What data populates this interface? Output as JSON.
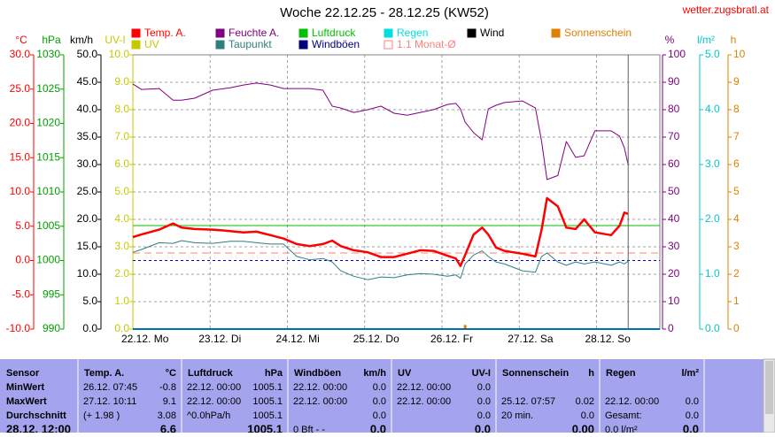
{
  "chart_data": {
    "type": "line",
    "title": "Woche 22.12.25 - 28.12.25 (KW52)",
    "source": "wetter.zugsbratl.at",
    "xlim": [
      0,
      6.82
    ],
    "xticks": [
      {
        "value": 0,
        "label": "22.12.  Mo"
      },
      {
        "value": 1,
        "label": "23.12.  Di"
      },
      {
        "value": 2,
        "label": "24.12.  Mi"
      },
      {
        "value": 3,
        "label": "25.12.  Do"
      },
      {
        "value": 4,
        "label": "26.12.  Fr"
      },
      {
        "value": 5,
        "label": "27.12.  Sa"
      },
      {
        "value": 6,
        "label": "28.12.  So"
      }
    ],
    "axes": [
      {
        "label": "°C",
        "color": "#ff0000",
        "side": "left",
        "lim": [
          -10,
          30
        ],
        "ticks": [
          {
            "value": 30,
            "label": "30.0"
          },
          {
            "value": 25,
            "label": "25.0"
          },
          {
            "value": 20,
            "label": "20.0"
          },
          {
            "value": 15,
            "label": "15.0"
          },
          {
            "value": 10,
            "label": "10.0"
          },
          {
            "value": 5,
            "label": "5.0"
          },
          {
            "value": 0,
            "label": "0.0"
          },
          {
            "value": -5,
            "label": "-5.0"
          },
          {
            "value": -10,
            "label": "-10.0"
          }
        ]
      },
      {
        "label": "hPa",
        "color": "#00a000",
        "side": "left",
        "lim": [
          990,
          1030
        ],
        "ticks": [
          1030,
          1025,
          1020,
          1015,
          1010,
          1005,
          1000,
          995,
          990
        ]
      },
      {
        "label": "km/h",
        "color": "#000000",
        "side": "left",
        "lim": [
          0,
          50
        ],
        "ticks": [
          {
            "value": 50,
            "label": "50.0"
          },
          {
            "value": 45,
            "label": "45.0"
          },
          {
            "value": 40,
            "label": "40.0"
          },
          {
            "value": 35,
            "label": "35.0"
          },
          {
            "value": 30,
            "label": "30.0"
          },
          {
            "value": 25,
            "label": "25.0"
          },
          {
            "value": 20,
            "label": "20.0"
          },
          {
            "value": 15,
            "label": "15.0"
          },
          {
            "value": 10,
            "label": "10.0"
          },
          {
            "value": 5,
            "label": "5.0"
          },
          {
            "value": 0,
            "label": "0.0"
          }
        ]
      },
      {
        "label": "UV-I",
        "color": "#c8c800",
        "side": "left",
        "lim": [
          0,
          10
        ],
        "ticks": [
          {
            "value": 10,
            "label": "10.0"
          },
          {
            "value": 9,
            "label": "9.0"
          },
          {
            "value": 8,
            "label": "8.0"
          },
          {
            "value": 7,
            "label": "7.0"
          },
          {
            "value": 6,
            "label": "6.0"
          },
          {
            "value": 5,
            "label": "5.0"
          },
          {
            "value": 4,
            "label": "4.0"
          },
          {
            "value": 3,
            "label": "3.0"
          },
          {
            "value": 2,
            "label": "2.0"
          },
          {
            "value": 1,
            "label": "1.0"
          },
          {
            "value": 0,
            "label": "0.0"
          }
        ]
      },
      {
        "label": "%",
        "color": "#800080",
        "side": "right",
        "grid": true,
        "lim": [
          0,
          100
        ],
        "ticks": [
          100,
          90,
          80,
          70,
          60,
          50,
          40,
          30,
          20,
          10,
          0
        ]
      },
      {
        "label": "l/m²",
        "color": "#00c8c8",
        "side": "right",
        "lim": [
          0,
          5
        ],
        "ticks": [
          {
            "value": 5,
            "label": "5.0"
          },
          {
            "value": 4,
            "label": "4.0"
          },
          {
            "value": 3,
            "label": "3.0"
          },
          {
            "value": 2,
            "label": "2.0"
          },
          {
            "value": 1,
            "label": "1.0"
          },
          {
            "value": 0,
            "label": "0.0"
          }
        ]
      },
      {
        "label": "h",
        "color": "#e08000",
        "side": "right",
        "lim": [
          0,
          10
        ],
        "ticks": [
          10,
          9,
          8,
          7,
          6,
          5,
          4,
          3,
          2,
          1,
          0
        ]
      }
    ],
    "x": [
      0,
      0.11,
      0.34,
      0.52,
      0.63,
      0.8,
      1.03,
      1.26,
      1.43,
      1.6,
      1.78,
      1.95,
      2.12,
      2.29,
      2.46,
      2.58,
      2.69,
      2.86,
      3.04,
      3.21,
      3.38,
      3.55,
      3.72,
      3.89,
      4.07,
      4.18,
      4.24,
      4.3,
      4.41,
      4.52,
      4.6,
      4.7,
      4.81,
      5.04,
      5.21,
      5.29,
      5.36,
      5.5,
      5.61,
      5.73,
      5.84,
      5.98,
      6.19,
      6.3,
      6.36,
      6.41
    ],
    "series": [
      {
        "name": "Temp. A.",
        "color": "#ff0000",
        "axis": 0,
        "width": 2.5,
        "values": [
          3.4,
          3.8,
          4.5,
          5.4,
          4.8,
          4.6,
          4.5,
          4.3,
          4.1,
          4.2,
          3.7,
          3.2,
          2.4,
          2.1,
          2.4,
          2.9,
          2.1,
          1.5,
          1.2,
          0.5,
          0.5,
          1.0,
          1.5,
          1.4,
          0.7,
          0.3,
          -0.8,
          0.8,
          3.8,
          4.8,
          3.8,
          1.9,
          1.4,
          1.0,
          0.6,
          4.5,
          9.1,
          7.9,
          4.8,
          4.6,
          6.0,
          4.1,
          3.7,
          5.1,
          7.0,
          6.8
        ]
      },
      {
        "name": "Feuchte A.",
        "color": "#800080",
        "axis": 4,
        "width": 1,
        "values": [
          89.4,
          87.4,
          87.7,
          83.5,
          83.5,
          84.2,
          87.1,
          88,
          89,
          89.7,
          89,
          87.7,
          87.7,
          87.7,
          87.1,
          81.3,
          80.6,
          79,
          80,
          81.3,
          78.7,
          78,
          79,
          80,
          81.9,
          82.3,
          80.3,
          75.5,
          71.6,
          69,
          80.3,
          81.6,
          82.6,
          83.2,
          80.6,
          68.4,
          54.5,
          56,
          68.4,
          62.6,
          63.2,
          72.3,
          72.3,
          70.3,
          66.1,
          60
        ]
      },
      {
        "name": "Luftdruck",
        "color": "#00c000",
        "axis": 1,
        "width": 1,
        "x": [
          0,
          6.82
        ],
        "values": [
          1005.1,
          1005.1
        ]
      },
      {
        "name": "Regen",
        "color": "#00e0e0",
        "axis": 5,
        "width": 2,
        "x": [
          0,
          6.82
        ],
        "values": [
          0,
          0
        ]
      },
      {
        "name": "Wind",
        "color": "#000000",
        "axis": 2,
        "width": 1,
        "x": [
          0,
          6.82
        ],
        "values": [
          0,
          0
        ]
      },
      {
        "name": "Sonnenschein",
        "color": "#e08000",
        "axis": 6,
        "style": "bar",
        "x": [
          4.3
        ],
        "values": [
          0.15
        ]
      },
      {
        "name": "UV",
        "color": "#c8c800",
        "axis": 3,
        "width": 1,
        "x": [
          0,
          6.82
        ],
        "values": [
          0,
          0
        ]
      },
      {
        "name": "Taupunkt",
        "color": "#2f7f7f",
        "axis": 0,
        "width": 1,
        "values": [
          1.2,
          1.6,
          2.6,
          2.5,
          2.9,
          2.6,
          2.5,
          2.8,
          2.8,
          2.6,
          2.4,
          2.4,
          0.6,
          0.1,
          0.3,
          -0.2,
          -1.5,
          -2.3,
          -2.8,
          -2.4,
          -2.5,
          -2.1,
          -1.9,
          -2.0,
          -2.3,
          -2.1,
          -2.6,
          -0.5,
          0.8,
          1.4,
          0.6,
          -0.2,
          -0.5,
          -1.5,
          -1.7,
          0.6,
          1.1,
          -0.2,
          -0.7,
          -0.2,
          -0.5,
          -0.2,
          -0.7,
          -0.2,
          -0.5,
          -0.1
        ]
      },
      {
        "name": "Windböen",
        "color": "#000080",
        "axis": 2,
        "width": 1,
        "x": [
          0,
          6.82
        ],
        "values": [
          0,
          0
        ]
      },
      {
        "name": "1.1 Monat-Ø",
        "color": "#ff8080",
        "axis": 0,
        "width": 1,
        "dash": true,
        "x": [
          0,
          6.82
        ],
        "values": [
          1.1,
          1.1
        ]
      }
    ]
  },
  "table": {
    "columns": [
      {
        "name": "Sensor"
      },
      {
        "name": "Temp. A.",
        "unit": "°C"
      },
      {
        "name": "Luftdruck",
        "unit": "hPa"
      },
      {
        "name": "Windböen",
        "unit": "km/h"
      },
      {
        "name": "UV",
        "unit": "UV-I"
      },
      {
        "name": "Sonnenschein",
        "unit": "h"
      },
      {
        "name": "Regen",
        "unit": "l/m²"
      }
    ],
    "rows": [
      {
        "label": "MinWert",
        "cells": [
          [
            "26.12.  07:45",
            "-0.8"
          ],
          [
            "22.12.  00:00",
            "1005.1"
          ],
          [
            "22.12.  00:00",
            "0.0"
          ],
          [
            "22.12.  00:00",
            "0.0"
          ],
          null,
          null
        ]
      },
      {
        "label": "MaxWert",
        "cells": [
          [
            "27.12.  10:11",
            "9.1"
          ],
          [
            "22.12.  00:00",
            "1005.1"
          ],
          [
            "22.12.  00:00",
            "0.0"
          ],
          [
            "22.12.  00:00",
            "0.0"
          ],
          [
            "25.12.  07:57",
            "0.02"
          ],
          [
            "22.12.  00:00",
            "0.0"
          ]
        ]
      },
      {
        "label": "Durchschnitt",
        "cells": [
          [
            "(+ 1.98 )",
            "3.08"
          ],
          [
            "^0.0hPa/h",
            "1005.1"
          ],
          [
            null,
            "0.0"
          ],
          [
            null,
            "0.0"
          ],
          [
            "20 min.",
            "0.0"
          ],
          [
            "Gesamt:",
            "0.0"
          ]
        ]
      },
      {
        "label": "28.12.  12:00",
        "bold": true,
        "cells": [
          [
            null,
            "6.6"
          ],
          [
            null,
            "1005.1"
          ],
          [
            "0 Bft - -",
            "0.0"
          ],
          [
            null,
            "0.0"
          ],
          [
            null,
            "0.00"
          ],
          [
            "0.0 l/m²",
            "0.0"
          ]
        ]
      }
    ]
  }
}
